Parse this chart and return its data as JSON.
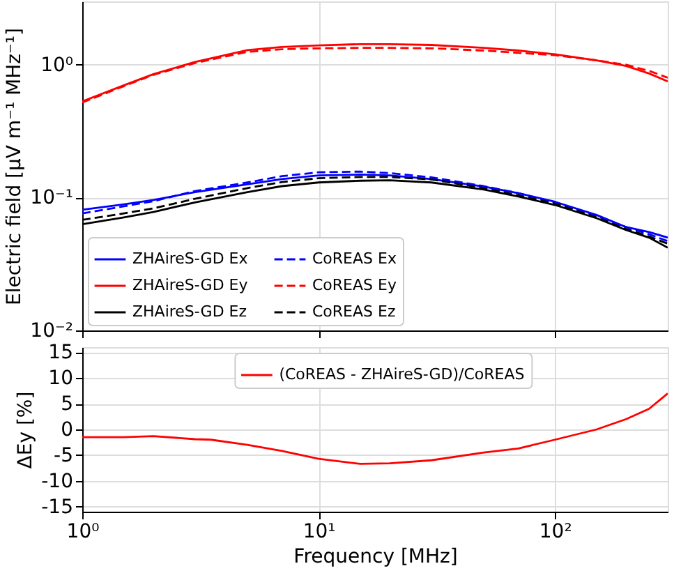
{
  "chart_data": [
    {
      "type": "line",
      "ylabel": "Electric field [μV m⁻¹ MHz⁻¹]",
      "log": "xy",
      "grid": true,
      "legend": "bottom left",
      "tick_labels": "y",
      "marker": "none",
      "x": [
        1,
        1.5,
        2,
        3,
        5,
        7,
        10,
        15,
        20,
        30,
        50,
        70,
        100,
        150,
        200,
        250,
        300
      ],
      "xlim": [
        1,
        300
      ],
      "xticks": [
        {
          "value": 1,
          "label": null
        },
        {
          "value": 10,
          "label": null
        },
        {
          "value": 100,
          "label": null
        }
      ],
      "ylim": [
        0.01,
        3
      ],
      "yticks": [
        {
          "value": 0.01,
          "label": "10⁻²"
        },
        {
          "value": 0.1,
          "label": "10⁻¹"
        },
        {
          "value": 1,
          "label": "10⁰"
        }
      ],
      "series": [
        {
          "name": "ZHAireS-GD Ex",
          "color": "#0000ff",
          "line_style": "solid",
          "values": [
            0.081,
            0.089,
            0.096,
            0.11,
            0.126,
            0.138,
            0.147,
            0.149,
            0.147,
            0.138,
            0.121,
            0.108,
            0.093,
            0.074,
            0.06,
            0.055,
            0.05
          ]
        },
        {
          "name": "ZHAireS-GD Ey",
          "color": "#ff0000",
          "line_style": "solid",
          "values": [
            0.53,
            0.7,
            0.85,
            1.05,
            1.29,
            1.36,
            1.4,
            1.43,
            1.43,
            1.41,
            1.34,
            1.28,
            1.2,
            1.08,
            0.98,
            0.86,
            0.75
          ]
        },
        {
          "name": "ZHAireS-GD Ez",
          "color": "#000000",
          "line_style": "solid",
          "values": [
            0.063,
            0.071,
            0.078,
            0.092,
            0.11,
            0.122,
            0.13,
            0.134,
            0.135,
            0.13,
            0.115,
            0.102,
            0.088,
            0.07,
            0.057,
            0.05,
            0.042
          ]
        },
        {
          "name": "CoREAS Ex",
          "color": "#0000ff",
          "line_style": "dashed",
          "values": [
            0.076,
            0.086,
            0.094,
            0.112,
            0.13,
            0.145,
            0.155,
            0.157,
            0.153,
            0.142,
            0.122,
            0.108,
            0.092,
            0.073,
            0.06,
            0.053,
            0.047
          ]
        },
        {
          "name": "CoREAS Ey",
          "color": "#ff0000",
          "line_style": "dashed",
          "values": [
            0.52,
            0.69,
            0.84,
            1.03,
            1.25,
            1.31,
            1.33,
            1.34,
            1.34,
            1.33,
            1.28,
            1.23,
            1.18,
            1.08,
            1.0,
            0.9,
            0.8
          ]
        },
        {
          "name": "CoREAS Ez",
          "color": "#000000",
          "line_style": "dashed",
          "values": [
            0.068,
            0.076,
            0.083,
            0.098,
            0.118,
            0.131,
            0.14,
            0.143,
            0.143,
            0.137,
            0.118,
            0.104,
            0.09,
            0.071,
            0.058,
            0.051,
            0.045
          ]
        }
      ]
    },
    {
      "type": "line",
      "xlabel": "Frequency [MHz]",
      "ylabel": "ΔEy [%]",
      "log": "x",
      "grid": true,
      "legend": "top",
      "marker": "none",
      "x": [
        1,
        1.5,
        2,
        3,
        3.5,
        5,
        7,
        10,
        15,
        20,
        30,
        50,
        70,
        100,
        150,
        200,
        250,
        300
      ],
      "xlim": [
        1,
        300
      ],
      "xticks": [
        {
          "value": 1,
          "label": "10⁰"
        },
        {
          "value": 10,
          "label": "10¹"
        },
        {
          "value": 100,
          "label": "10²"
        }
      ],
      "ylim": [
        -16,
        16
      ],
      "yticks": [
        -15,
        -10,
        -5,
        0,
        5,
        10,
        15
      ],
      "series": [
        {
          "name": "(CoREAS - ZHAireS-GD)/CoREAS",
          "color": "#ff0000",
          "line_style": "solid",
          "values": [
            -1.5,
            -1.5,
            -1.3,
            -1.9,
            -2,
            -3,
            -4.2,
            -5.7,
            -6.7,
            -6.6,
            -6,
            -4.5,
            -3.7,
            -2,
            0,
            2,
            4,
            7
          ]
        }
      ]
    }
  ]
}
